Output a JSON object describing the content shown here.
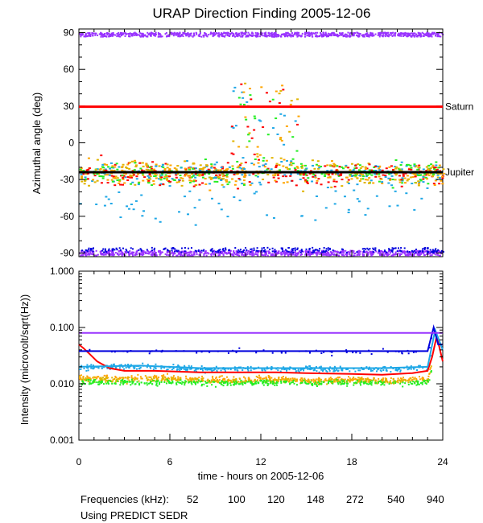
{
  "title": "URAP Direction Finding  2005-12-06",
  "chart_data": [
    {
      "type": "scatter",
      "panel": "azimuth",
      "ylabel": "Azimuthal angle (deg)",
      "ylim": [
        -93,
        93
      ],
      "yticks": [
        90,
        60,
        30,
        0,
        -30,
        -60,
        -90
      ],
      "xlim": [
        0,
        24
      ],
      "reference_lines": [
        {
          "name": "Saturn",
          "value": 29.5,
          "color": "#ff0000"
        },
        {
          "name": "Jupiter",
          "value": -24,
          "color": "#000000"
        }
      ],
      "series_summary": [
        {
          "freq": "52",
          "approx_y": -27
        },
        {
          "freq": "100",
          "approx_y": -24
        },
        {
          "freq": "120",
          "approx_y": -24
        },
        {
          "freq": "148",
          "approx_y": -24
        },
        {
          "freq": "272",
          "approx_y": -28
        },
        {
          "freq": "540",
          "approx_y": -88
        },
        {
          "freq": "940",
          "approx_y": [
            89,
            -90
          ]
        }
      ]
    },
    {
      "type": "line",
      "panel": "intensity",
      "ylabel": "Intensity (microvolt/sqrt(Hz))",
      "yscale": "log",
      "ylim": [
        0.001,
        1.0
      ],
      "ytick_labels": [
        "1.000",
        "0.100",
        "0.010",
        "0.001"
      ],
      "yticks": [
        1.0,
        0.1,
        0.01,
        0.001
      ],
      "xlim": [
        0,
        24
      ],
      "xticks": [
        0,
        6,
        12,
        18,
        24
      ],
      "xlabel": "time - hours on 2005-12-06",
      "series": [
        {
          "name": "52",
          "color": "#ff0000",
          "x": [
            0,
            0.3,
            0.7,
            1.2,
            2,
            3,
            5,
            8,
            11,
            13,
            15,
            18,
            20,
            22,
            23,
            23.3,
            23.6,
            24
          ],
          "values": [
            0.05,
            0.043,
            0.034,
            0.025,
            0.019,
            0.017,
            0.017,
            0.016,
            0.016,
            0.016,
            0.0155,
            0.015,
            0.0145,
            0.0155,
            0.017,
            0.03,
            0.07,
            0.025
          ]
        },
        {
          "name": "100",
          "color": "#ffa500",
          "x": [
            0,
            3,
            6,
            9,
            12,
            15,
            18,
            21,
            23,
            23.6,
            24
          ],
          "values": [
            0.0135,
            0.013,
            0.0135,
            0.012,
            0.013,
            0.012,
            0.0125,
            0.012,
            0.013,
            0.06,
            0.03
          ]
        },
        {
          "name": "120",
          "color": "#e0b400",
          "x": [
            0,
            3,
            6,
            9,
            12,
            15,
            18,
            21,
            23,
            23.6,
            24
          ],
          "values": [
            0.0125,
            0.012,
            0.0125,
            0.0115,
            0.012,
            0.0112,
            0.0118,
            0.0112,
            0.012,
            0.05,
            0.025
          ]
        },
        {
          "name": "148",
          "color": "#22ee22",
          "x": [
            0,
            3,
            6,
            9,
            12,
            15,
            18,
            21,
            23,
            23.6,
            24
          ],
          "values": [
            0.011,
            0.0108,
            0.011,
            0.0105,
            0.011,
            0.0105,
            0.0108,
            0.0105,
            0.011,
            0.045,
            0.022
          ]
        },
        {
          "name": "272",
          "color": "#1ea7e6",
          "x": [
            0,
            4,
            8,
            12,
            16,
            20,
            23,
            23.5,
            24
          ],
          "values": [
            0.02,
            0.021,
            0.019,
            0.019,
            0.019,
            0.019,
            0.02,
            0.09,
            0.04
          ]
        },
        {
          "name": "540",
          "color": "#0000dd",
          "x": [
            0,
            23,
            23.4,
            23.7,
            24
          ],
          "values": [
            0.038,
            0.038,
            0.1,
            0.05,
            0.05
          ]
        },
        {
          "name": "940",
          "color": "#9933ff",
          "x": [
            0,
            24
          ],
          "values": [
            0.08,
            0.08
          ]
        }
      ]
    }
  ],
  "legend": {
    "label": "Frequencies (kHz):",
    "items": [
      {
        "text": "52",
        "color": "#ff0000"
      },
      {
        "text": "100",
        "color": "#ffa500"
      },
      {
        "text": "120",
        "color": "#e0b400"
      },
      {
        "text": "148",
        "color": "#22ee22"
      },
      {
        "text": "272",
        "color": "#1ea7e6"
      },
      {
        "text": "540",
        "color": "#0000dd"
      },
      {
        "text": "940",
        "color": "#9933ff"
      }
    ]
  },
  "footnote": "Using PREDICT SEDR"
}
